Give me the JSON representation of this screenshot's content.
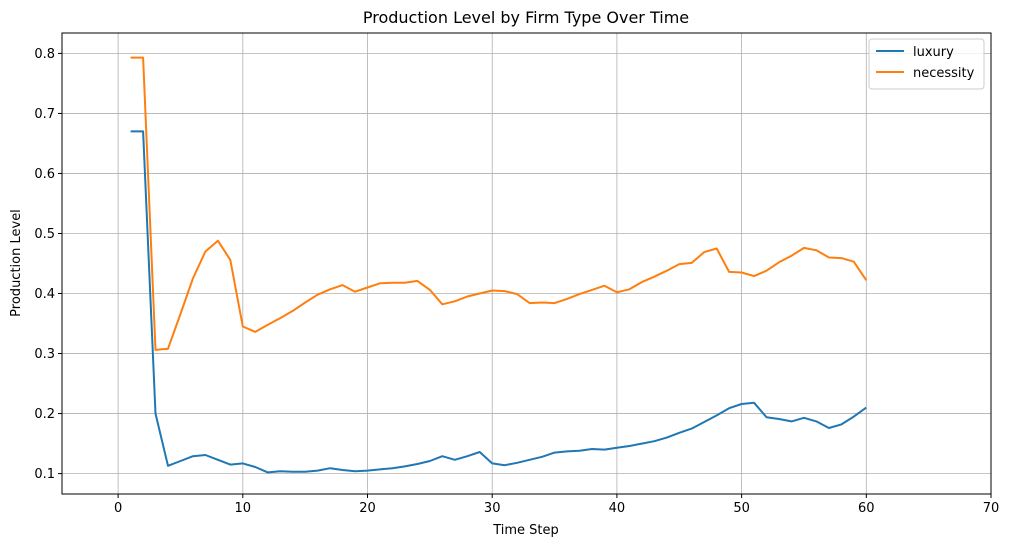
{
  "chart_data": {
    "type": "line",
    "title": "Production Level by Firm Type Over Time",
    "xlabel": "Time Step",
    "ylabel": "Production Level",
    "xlim": [
      -4.5,
      70
    ],
    "ylim": [
      0.066,
      0.834
    ],
    "xticks": [
      0,
      10,
      20,
      30,
      40,
      50,
      60,
      70
    ],
    "yticks": [
      0.1,
      0.2,
      0.3,
      0.4,
      0.5,
      0.6,
      0.7,
      0.8
    ],
    "xtick_labels": [
      "0",
      "10",
      "20",
      "30",
      "40",
      "50",
      "60",
      "70"
    ],
    "ytick_labels": [
      "0.1",
      "0.2",
      "0.3",
      "0.4",
      "0.5",
      "0.6",
      "0.7",
      "0.8"
    ],
    "grid": true,
    "legend_position": "top-right",
    "x": [
      1,
      2,
      3,
      4,
      5,
      6,
      7,
      8,
      9,
      10,
      11,
      12,
      13,
      14,
      15,
      16,
      17,
      18,
      19,
      20,
      21,
      22,
      23,
      24,
      25,
      26,
      27,
      28,
      29,
      30,
      31,
      32,
      33,
      34,
      35,
      36,
      37,
      38,
      39,
      40,
      41,
      42,
      43,
      44,
      45,
      46,
      47,
      48,
      49,
      50,
      51,
      52,
      53,
      54,
      55,
      56,
      57,
      58,
      59,
      60
    ],
    "series": [
      {
        "name": "luxury",
        "color": "#1f77b4",
        "values": [
          0.67,
          0.67,
          0.2,
          0.113,
          0.121,
          0.129,
          0.131,
          0.123,
          0.115,
          0.117,
          0.111,
          0.102,
          0.104,
          0.103,
          0.103,
          0.105,
          0.109,
          0.106,
          0.104,
          0.105,
          0.107,
          0.109,
          0.112,
          0.116,
          0.121,
          0.129,
          0.123,
          0.129,
          0.136,
          0.117,
          0.114,
          0.118,
          0.123,
          0.128,
          0.135,
          0.137,
          0.138,
          0.141,
          0.14,
          0.143,
          0.146,
          0.15,
          0.154,
          0.16,
          0.168,
          0.175,
          0.186,
          0.197,
          0.209,
          0.216,
          0.218,
          0.194,
          0.191,
          0.187,
          0.193,
          0.187,
          0.176,
          0.182,
          0.195,
          0.21
        ]
      },
      {
        "name": "necessity",
        "color": "#ff7f0e",
        "values": [
          0.793,
          0.793,
          0.306,
          0.308,
          0.366,
          0.425,
          0.47,
          0.488,
          0.456,
          0.345,
          0.336,
          0.348,
          0.359,
          0.371,
          0.385,
          0.398,
          0.407,
          0.414,
          0.403,
          0.41,
          0.417,
          0.418,
          0.418,
          0.421,
          0.406,
          0.382,
          0.387,
          0.395,
          0.4,
          0.405,
          0.404,
          0.399,
          0.384,
          0.385,
          0.384,
          0.391,
          0.399,
          0.406,
          0.413,
          0.402,
          0.407,
          0.419,
          0.428,
          0.438,
          0.449,
          0.451,
          0.469,
          0.475,
          0.436,
          0.435,
          0.429,
          0.438,
          0.452,
          0.463,
          0.476,
          0.472,
          0.46,
          0.459,
          0.453,
          0.422
        ]
      }
    ]
  }
}
